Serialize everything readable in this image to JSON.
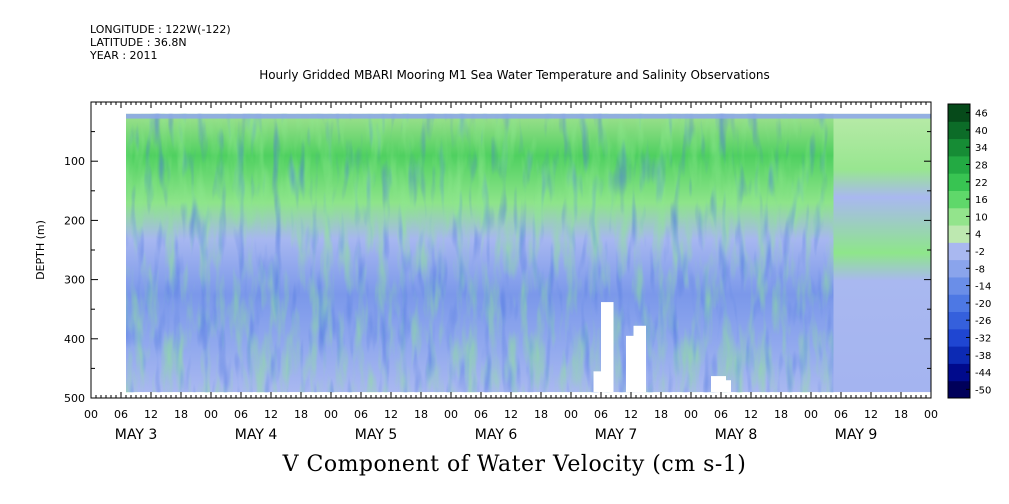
{
  "header": {
    "longitude": "LONGITUDE : 122W(-122)",
    "latitude": "LATITUDE : 36.8N",
    "year": "YEAR : 2011",
    "title": "Hourly Gridded MBARI Mooring M1 Sea Water Temperature and Salinity Observations"
  },
  "caption": "V Component of Water Velocity (cm s-1)",
  "chart_data": {
    "type": "heatmap",
    "variable": "V Component of Water Velocity (cm s-1)",
    "ylabel": "DEPTH (m)",
    "ylim": [
      500,
      0
    ],
    "y_ticks": [
      100,
      200,
      300,
      400,
      500
    ],
    "y_tick_labels": [
      "100",
      "200",
      "300",
      "400",
      "500"
    ],
    "x_hour_labels": [
      "00",
      "06",
      "12",
      "18",
      "00",
      "06",
      "12",
      "18",
      "00",
      "06",
      "12",
      "18",
      "00",
      "06",
      "12",
      "18",
      "00",
      "06",
      "12",
      "18",
      "00",
      "06",
      "12",
      "18",
      "00",
      "06",
      "12",
      "18",
      "00"
    ],
    "x_day_labels": [
      "MAY  3",
      "MAY  4",
      "MAY  5",
      "MAY  6",
      "MAY  7",
      "MAY  8",
      "MAY  9"
    ],
    "xlim_hours": [
      0,
      168
    ],
    "data_depth_range": [
      20,
      490
    ],
    "data_time_start_hour": 7,
    "colorbar": {
      "levels": [
        -50,
        -44,
        -38,
        -32,
        -26,
        -20,
        -14,
        -8,
        -2,
        4,
        10,
        16,
        22,
        28,
        34,
        40,
        46
      ],
      "labels": [
        "46",
        "40",
        "34",
        "28",
        "22",
        "16",
        "10",
        "4",
        "-2",
        "-8",
        "-14",
        "-20",
        "-26",
        "-32",
        "-38",
        "-44",
        "-50"
      ],
      "colors_low_to_high": [
        "#00005a",
        "#000a8c",
        "#0c2ab4",
        "#1f46d2",
        "#3560dc",
        "#4d78e4",
        "#6a8ee8",
        "#8aa4ec",
        "#a9b8f0",
        "#bde8b0",
        "#93e48c",
        "#5fd86a",
        "#38c452",
        "#23aa43",
        "#168c35",
        "#0c6c28",
        "#064a1a"
      ]
    },
    "field_profile": [
      {
        "depth": 20,
        "v": 8
      },
      {
        "depth": 100,
        "v": 10
      },
      {
        "depth": 150,
        "v": 6
      },
      {
        "depth": 250,
        "v": -6
      },
      {
        "depth": 350,
        "v": -9
      },
      {
        "depth": 450,
        "v": -4
      }
    ],
    "missing_blocks": [
      {
        "t_start": 100.5,
        "t_end": 102,
        "depth_top": 455,
        "depth_bottom": 490
      },
      {
        "t_start": 102,
        "t_end": 104.5,
        "depth_top": 338,
        "depth_bottom": 490
      },
      {
        "t_start": 107,
        "t_end": 108.5,
        "depth_top": 395,
        "depth_bottom": 490
      },
      {
        "t_start": 108.5,
        "t_end": 110,
        "depth_top": 378,
        "depth_bottom": 490
      },
      {
        "t_start": 110,
        "t_end": 111,
        "depth_top": 378,
        "depth_bottom": 490
      },
      {
        "t_start": 124,
        "t_end": 127,
        "depth_top": 463,
        "depth_bottom": 490
      },
      {
        "t_start": 127,
        "t_end": 128,
        "depth_top": 470,
        "depth_bottom": 490
      }
    ]
  }
}
